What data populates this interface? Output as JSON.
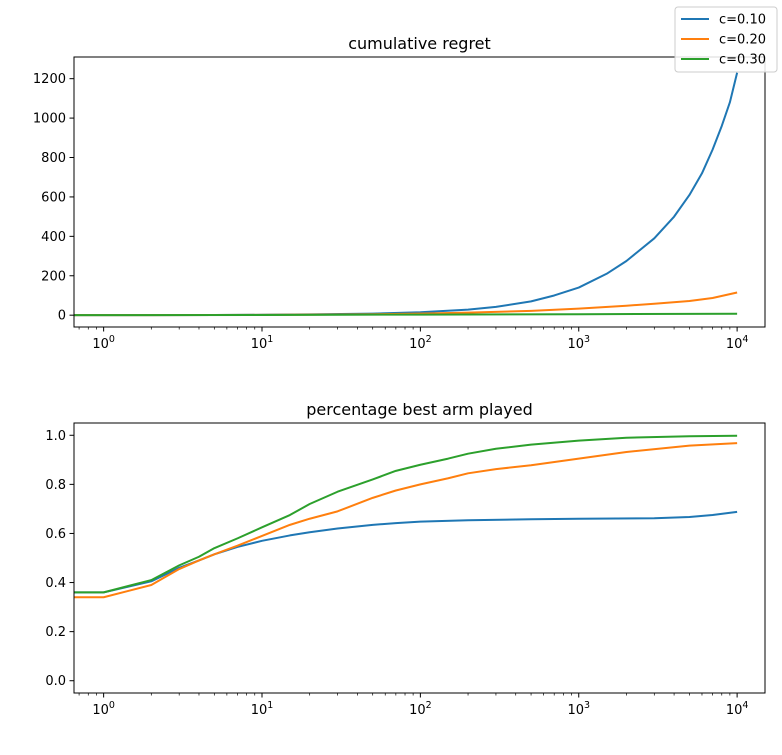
{
  "legend": {
    "position": "top-right",
    "entries": [
      {
        "label": "c=0.10",
        "color": "#1f77b4"
      },
      {
        "label": "c=0.20",
        "color": "#ff7f0e"
      },
      {
        "label": "c=0.30",
        "color": "#2ca02c"
      }
    ]
  },
  "chart_data": [
    {
      "type": "line",
      "title": "cumulative regret",
      "xlabel": "",
      "ylabel": "",
      "xscale": "log",
      "xlim": [
        0.65,
        15000
      ],
      "ylim": [
        -60,
        1310
      ],
      "x_ticks": [
        1,
        10,
        100,
        1000,
        10000
      ],
      "x_tick_labels": [
        [
          "10",
          "0"
        ],
        [
          "10",
          "1"
        ],
        [
          "10",
          "2"
        ],
        [
          "10",
          "3"
        ],
        [
          "10",
          "4"
        ]
      ],
      "y_ticks": [
        0,
        200,
        400,
        600,
        800,
        1000,
        1200
      ],
      "y_tick_labels": [
        "0",
        "200",
        "400",
        "600",
        "800",
        "1000",
        "1200"
      ],
      "series": [
        {
          "name": "c=0.10",
          "color": "#1f77b4",
          "x": [
            0.65,
            1,
            2,
            5,
            10,
            20,
            50,
            100,
            200,
            300,
            500,
            700,
            1000,
            1500,
            2000,
            3000,
            4000,
            5000,
            6000,
            7000,
            8000,
            9000,
            10000
          ],
          "y": [
            0,
            0,
            0.3,
            1,
            2,
            4,
            8,
            15,
            28,
            42,
            70,
            100,
            140,
            210,
            275,
            390,
            500,
            610,
            720,
            840,
            960,
            1080,
            1230
          ]
        },
        {
          "name": "c=0.20",
          "color": "#ff7f0e",
          "x": [
            0.65,
            1,
            2,
            5,
            10,
            20,
            50,
            100,
            200,
            500,
            1000,
            2000,
            3000,
            5000,
            7000,
            10000
          ],
          "y": [
            0,
            0,
            0.3,
            1,
            1.5,
            2.5,
            5,
            8,
            13,
            22,
            33,
            48,
            58,
            72,
            87,
            115
          ]
        },
        {
          "name": "c=0.30",
          "color": "#2ca02c",
          "x": [
            0.65,
            1,
            10,
            100,
            1000,
            10000
          ],
          "y": [
            0,
            0,
            1,
            3,
            5,
            7
          ]
        }
      ]
    },
    {
      "type": "line",
      "title": "percentage best arm played",
      "xlabel": "",
      "ylabel": "",
      "xscale": "log",
      "xlim": [
        0.65,
        15000
      ],
      "ylim": [
        -0.05,
        1.05
      ],
      "x_ticks": [
        1,
        10,
        100,
        1000,
        10000
      ],
      "x_tick_labels": [
        [
          "10",
          "0"
        ],
        [
          "10",
          "1"
        ],
        [
          "10",
          "2"
        ],
        [
          "10",
          "3"
        ],
        [
          "10",
          "4"
        ]
      ],
      "y_ticks": [
        0,
        0.2,
        0.4,
        0.6,
        0.8,
        1.0
      ],
      "y_tick_labels": [
        "0.0",
        "0.2",
        "0.4",
        "0.6",
        "0.8",
        "1.0"
      ],
      "series": [
        {
          "name": "c=0.10",
          "color": "#1f77b4",
          "x": [
            0.65,
            1,
            2,
            3,
            4,
            5,
            7,
            10,
            15,
            20,
            30,
            50,
            70,
            100,
            200,
            500,
            1000,
            3000,
            5000,
            7000,
            10000
          ],
          "y": [
            0.36,
            0.36,
            0.405,
            0.46,
            0.49,
            0.515,
            0.545,
            0.57,
            0.592,
            0.605,
            0.62,
            0.635,
            0.642,
            0.648,
            0.654,
            0.658,
            0.66,
            0.662,
            0.667,
            0.675,
            0.688
          ]
        },
        {
          "name": "c=0.20",
          "color": "#ff7f0e",
          "x": [
            0.65,
            1,
            2,
            3,
            4,
            5,
            7,
            10,
            15,
            20,
            30,
            50,
            70,
            100,
            150,
            200,
            300,
            500,
            1000,
            2000,
            5000,
            10000
          ],
          "y": [
            0.34,
            0.34,
            0.39,
            0.455,
            0.49,
            0.515,
            0.55,
            0.59,
            0.635,
            0.66,
            0.69,
            0.745,
            0.775,
            0.8,
            0.825,
            0.845,
            0.862,
            0.878,
            0.905,
            0.932,
            0.958,
            0.968
          ]
        },
        {
          "name": "c=0.30",
          "color": "#2ca02c",
          "x": [
            0.65,
            1,
            2,
            3,
            4,
            5,
            7,
            10,
            15,
            20,
            30,
            50,
            70,
            100,
            150,
            200,
            300,
            500,
            1000,
            2000,
            5000,
            10000
          ],
          "y": [
            0.36,
            0.36,
            0.41,
            0.47,
            0.505,
            0.54,
            0.58,
            0.625,
            0.675,
            0.72,
            0.77,
            0.82,
            0.855,
            0.88,
            0.905,
            0.925,
            0.945,
            0.962,
            0.978,
            0.99,
            0.996,
            0.998
          ]
        }
      ]
    }
  ]
}
